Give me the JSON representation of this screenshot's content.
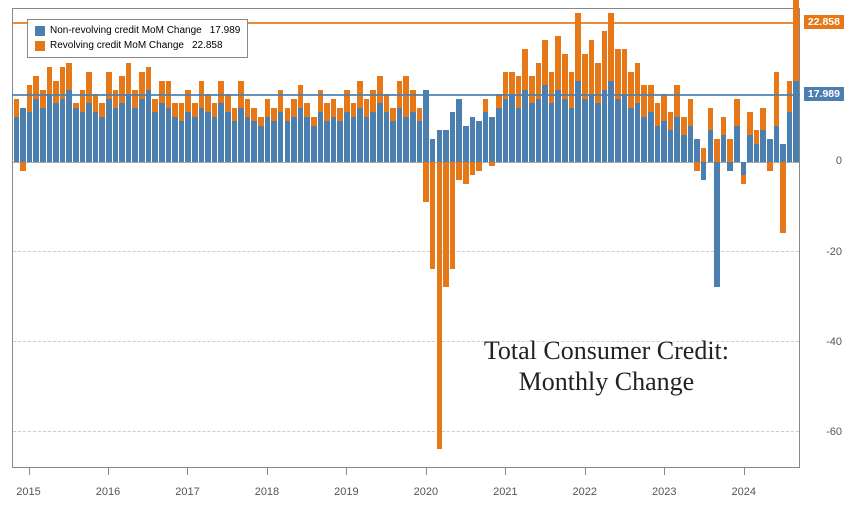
{
  "chart": {
    "type": "stacked-bar",
    "title_line1": "Total  Consumer Credit:",
    "title_line2": "Monthly Change",
    "title_fontsize": 26,
    "background_color": "#ffffff",
    "grid_color": "#cccccc",
    "axis_color": "#888888",
    "ylim": [
      -68,
      34
    ],
    "yticks": [
      -60,
      -40,
      -20,
      0
    ],
    "x_years": [
      2015,
      2016,
      2017,
      2018,
      2019,
      2020,
      2021,
      2022,
      2023,
      2024
    ],
    "series": [
      {
        "name": "Non-revolving credit MoM Change",
        "color": "#4a7fb0",
        "last_value": 17.989
      },
      {
        "name": "Revolving credit MoM Change",
        "color": "#e67817",
        "last_value": 22.858
      }
    ],
    "callouts": [
      {
        "label": "22.858",
        "color": "#e67817",
        "y": 31,
        "side": "right"
      },
      {
        "label": "17.989",
        "color": "#4a7fb0",
        "y": 15,
        "side": "right"
      }
    ],
    "data": [
      {
        "nr": 10,
        "r": 4
      },
      {
        "nr": 12,
        "r": -2
      },
      {
        "nr": 11,
        "r": 6
      },
      {
        "nr": 14,
        "r": 5
      },
      {
        "nr": 12,
        "r": 4
      },
      {
        "nr": 15,
        "r": 6
      },
      {
        "nr": 13,
        "r": 5
      },
      {
        "nr": 14,
        "r": 7
      },
      {
        "nr": 16,
        "r": 6
      },
      {
        "nr": 12,
        "r": 1
      },
      {
        "nr": 11,
        "r": 5
      },
      {
        "nr": 13,
        "r": 7
      },
      {
        "nr": 11,
        "r": 4
      },
      {
        "nr": 10,
        "r": 3
      },
      {
        "nr": 14,
        "r": 6
      },
      {
        "nr": 12,
        "r": 4
      },
      {
        "nr": 13,
        "r": 6
      },
      {
        "nr": 15,
        "r": 7
      },
      {
        "nr": 12,
        "r": 4
      },
      {
        "nr": 14,
        "r": 6
      },
      {
        "nr": 16,
        "r": 5
      },
      {
        "nr": 11,
        "r": 3
      },
      {
        "nr": 13,
        "r": 5
      },
      {
        "nr": 12,
        "r": 6
      },
      {
        "nr": 10,
        "r": 3
      },
      {
        "nr": 9,
        "r": 4
      },
      {
        "nr": 11,
        "r": 5
      },
      {
        "nr": 10,
        "r": 3
      },
      {
        "nr": 12,
        "r": 6
      },
      {
        "nr": 11,
        "r": 4
      },
      {
        "nr": 10,
        "r": 3
      },
      {
        "nr": 13,
        "r": 5
      },
      {
        "nr": 11,
        "r": 4
      },
      {
        "nr": 9,
        "r": 3
      },
      {
        "nr": 12,
        "r": 6
      },
      {
        "nr": 10,
        "r": 4
      },
      {
        "nr": 9,
        "r": 3
      },
      {
        "nr": 8,
        "r": 2
      },
      {
        "nr": 10,
        "r": 4
      },
      {
        "nr": 9,
        "r": 3
      },
      {
        "nr": 11,
        "r": 5
      },
      {
        "nr": 9,
        "r": 3
      },
      {
        "nr": 10,
        "r": 4
      },
      {
        "nr": 12,
        "r": 5
      },
      {
        "nr": 10,
        "r": 3
      },
      {
        "nr": 8,
        "r": 2
      },
      {
        "nr": 11,
        "r": 5
      },
      {
        "nr": 9,
        "r": 4
      },
      {
        "nr": 10,
        "r": 4
      },
      {
        "nr": 9,
        "r": 3
      },
      {
        "nr": 11,
        "r": 5
      },
      {
        "nr": 10,
        "r": 3
      },
      {
        "nr": 12,
        "r": 6
      },
      {
        "nr": 10,
        "r": 4
      },
      {
        "nr": 11,
        "r": 5
      },
      {
        "nr": 13,
        "r": 6
      },
      {
        "nr": 11,
        "r": 4
      },
      {
        "nr": 9,
        "r": 3
      },
      {
        "nr": 12,
        "r": 6
      },
      {
        "nr": 10,
        "r": 9
      },
      {
        "nr": 11,
        "r": 5
      },
      {
        "nr": 9,
        "r": 3
      },
      {
        "nr": 16,
        "r": -9
      },
      {
        "nr": 5,
        "r": -24
      },
      {
        "nr": 7,
        "r": -64
      },
      {
        "nr": 7,
        "r": -28
      },
      {
        "nr": 11,
        "r": -24
      },
      {
        "nr": 14,
        "r": -4
      },
      {
        "nr": 8,
        "r": -5
      },
      {
        "nr": 10,
        "r": -3
      },
      {
        "nr": 9,
        "r": -2
      },
      {
        "nr": 11,
        "r": 3
      },
      {
        "nr": 10,
        "r": -1
      },
      {
        "nr": 12,
        "r": 3
      },
      {
        "nr": 14,
        "r": 6
      },
      {
        "nr": 15,
        "r": 5
      },
      {
        "nr": 12,
        "r": 7
      },
      {
        "nr": 16,
        "r": 9
      },
      {
        "nr": 13,
        "r": 6
      },
      {
        "nr": 14,
        "r": 8
      },
      {
        "nr": 17,
        "r": 10
      },
      {
        "nr": 13,
        "r": 7
      },
      {
        "nr": 16,
        "r": 12
      },
      {
        "nr": 14,
        "r": 10
      },
      {
        "nr": 12,
        "r": 8
      },
      {
        "nr": 18,
        "r": 15
      },
      {
        "nr": 14,
        "r": 10
      },
      {
        "nr": 15,
        "r": 12
      },
      {
        "nr": 13,
        "r": 9
      },
      {
        "nr": 16,
        "r": 13
      },
      {
        "nr": 18,
        "r": 15
      },
      {
        "nr": 14,
        "r": 11
      },
      {
        "nr": 15,
        "r": 10
      },
      {
        "nr": 12,
        "r": 8
      },
      {
        "nr": 13,
        "r": 9
      },
      {
        "nr": 10,
        "r": 7
      },
      {
        "nr": 11,
        "r": 6
      },
      {
        "nr": 8,
        "r": 5
      },
      {
        "nr": 9,
        "r": 6
      },
      {
        "nr": 7,
        "r": 4
      },
      {
        "nr": 10,
        "r": 7
      },
      {
        "nr": 6,
        "r": 4
      },
      {
        "nr": 8,
        "r": 6
      },
      {
        "nr": 5,
        "r": -2
      },
      {
        "nr": -4,
        "r": 3
      },
      {
        "nr": 7,
        "r": 5
      },
      {
        "nr": -28,
        "r": 5
      },
      {
        "nr": 6,
        "r": 4
      },
      {
        "nr": -2,
        "r": 5
      },
      {
        "nr": 8,
        "r": 6
      },
      {
        "nr": -3,
        "r": -2
      },
      {
        "nr": 6,
        "r": 5
      },
      {
        "nr": 4,
        "r": 3
      },
      {
        "nr": 7,
        "r": 5
      },
      {
        "nr": 5,
        "r": -2
      },
      {
        "nr": 8,
        "r": 12
      },
      {
        "nr": 4,
        "r": -16
      },
      {
        "nr": 11,
        "r": 7
      },
      {
        "nr": 17.989,
        "r": 22.858
      }
    ]
  }
}
